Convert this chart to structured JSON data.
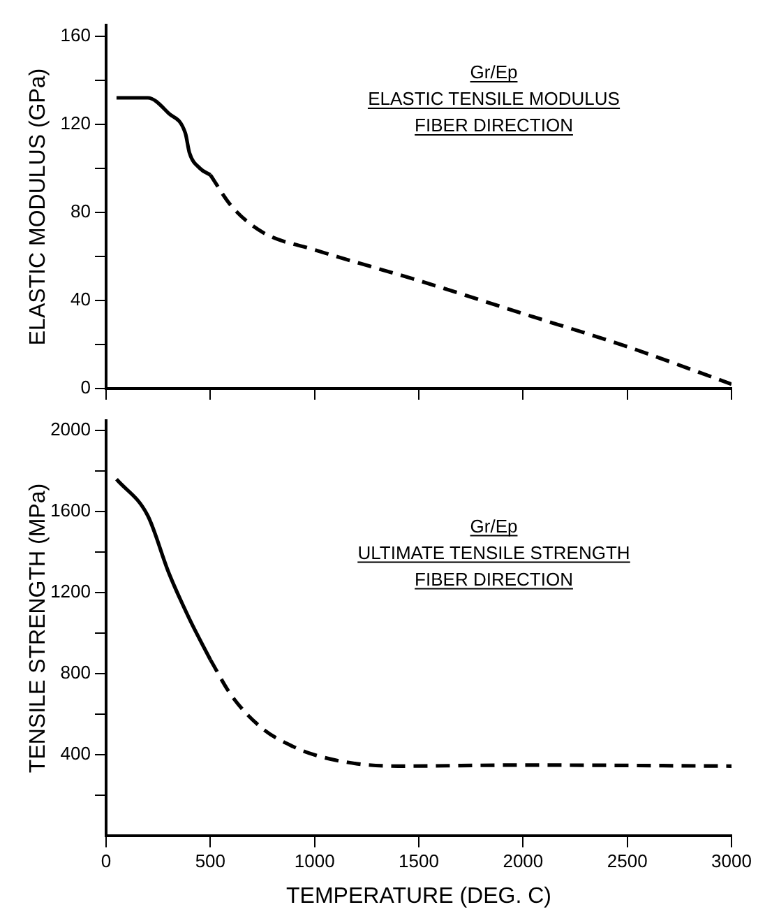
{
  "chart_data": [
    {
      "type": "line",
      "ylabel": "ELASTIC MODULUS (GPa)",
      "annotations": [
        "Gr/Ep",
        "ELASTIC TENSILE MODULUS",
        "FIBER DIRECTION"
      ],
      "xlim": [
        0,
        3000
      ],
      "xticks": [
        0,
        500,
        1000,
        1500,
        2000,
        2500,
        3000
      ],
      "ylim": [
        0,
        165
      ],
      "yticks": [
        0,
        {
          "value": 20,
          "label": null
        },
        40,
        {
          "value": 60,
          "label": null
        },
        80,
        {
          "value": 100,
          "label": null
        },
        120,
        {
          "value": 140,
          "label": null
        },
        160
      ],
      "tick_labels": "y",
      "grid": false,
      "legend": false,
      "marker": "none",
      "series": [
        {
          "color": "#000000",
          "line_style": "solid",
          "x": [
            50,
            200,
            300,
            380,
            400,
            450,
            500
          ],
          "values": [
            132,
            132,
            125,
            116,
            107,
            100,
            97
          ]
        },
        {
          "color": "#000000",
          "line_style": "dashed",
          "x": [
            500,
            600,
            750,
            1000,
            1500,
            2000,
            2500,
            3000
          ],
          "values": [
            97,
            83,
            71,
            63,
            49,
            34,
            19,
            2
          ]
        }
      ]
    },
    {
      "type": "line",
      "xlabel": "TEMPERATURE (DEG. C)",
      "ylabel": "TENSILE STRENGTH (MPa)",
      "annotations": [
        "Gr/Ep",
        "ULTIMATE TENSILE STRENGTH",
        "FIBER DIRECTION"
      ],
      "xlim": [
        0,
        3000
      ],
      "xticks": [
        0,
        500,
        1000,
        1500,
        2000,
        2500,
        3000
      ],
      "ylim": [
        0,
        2050
      ],
      "yticks": [
        {
          "value": 200,
          "label": null
        },
        400,
        {
          "value": 600,
          "label": null
        },
        800,
        {
          "value": 1000,
          "label": null
        },
        1200,
        {
          "value": 1400,
          "label": null
        },
        1600,
        {
          "value": 1800,
          "label": null
        },
        2000
      ],
      "grid": false,
      "legend": false,
      "marker": "none",
      "series": [
        {
          "color": "#000000",
          "line_style": "solid",
          "x": [
            50,
            200,
            300,
            400,
            500
          ],
          "values": [
            1760,
            1580,
            1300,
            1070,
            870
          ]
        },
        {
          "color": "#000000",
          "line_style": "dashed",
          "x": [
            500,
            600,
            750,
            900,
            1000,
            1200,
            1400,
            2000,
            3000
          ],
          "values": [
            870,
            695,
            530,
            440,
            400,
            357,
            345,
            350,
            345
          ]
        }
      ]
    }
  ]
}
